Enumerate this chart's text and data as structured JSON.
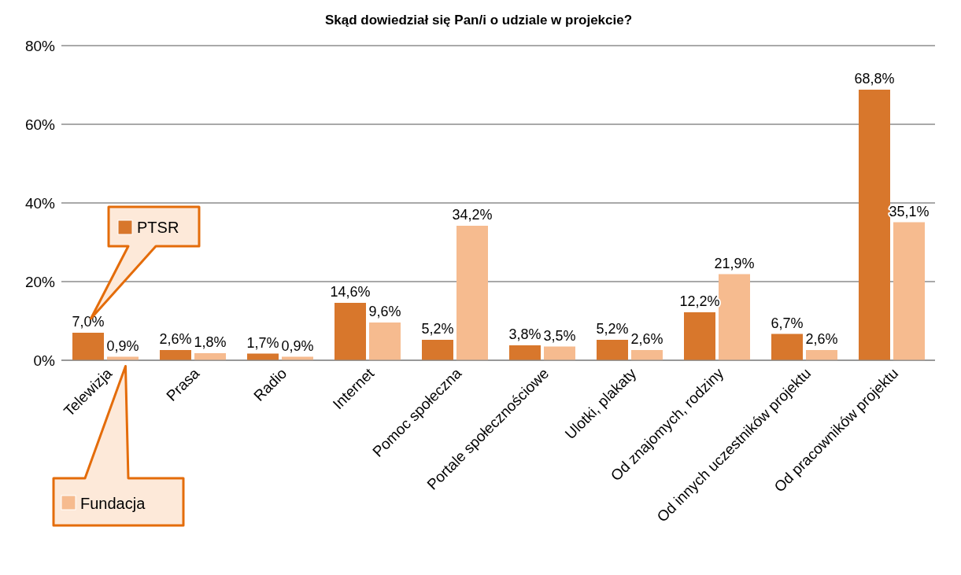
{
  "chart_data": {
    "type": "bar",
    "title": "Skąd dowiedział się Pan/i o udziale w projekcie?",
    "categories": [
      "Telewizja",
      "Prasa",
      "Radio",
      "Internet",
      "Pomoc społeczna",
      "Portale społecznościowe",
      "Ulotki, plakaty",
      "Od znajomych, rodziny",
      "Od innych uczestników projektu",
      "Od pracowników projektu"
    ],
    "series": [
      {
        "name": "PTSR",
        "color": "#d8772c",
        "values": [
          7.0,
          2.6,
          1.7,
          14.6,
          5.2,
          3.8,
          5.2,
          12.2,
          6.7,
          68.8
        ],
        "value_labels": [
          "7,0%",
          "2,6%",
          "1,7%",
          "14,6%",
          "5,2%",
          "3,8%",
          "5,2%",
          "12,2%",
          "6,7%",
          "68,8%"
        ]
      },
      {
        "name": "Fundacja",
        "color": "#f6bb8f",
        "values": [
          0.9,
          1.8,
          0.9,
          9.6,
          34.2,
          3.5,
          2.6,
          21.9,
          2.6,
          35.1
        ],
        "value_labels": [
          "0,9%",
          "1,8%",
          "0,9%",
          "9,6%",
          "34,2%",
          "3,5%",
          "2,6%",
          "21,9%",
          "2,6%",
          "35,1%"
        ]
      }
    ],
    "ylim": [
      0,
      80
    ],
    "yticks": [
      {
        "value": 0,
        "label": "0%"
      },
      {
        "value": 20,
        "label": "20%"
      },
      {
        "value": 40,
        "label": "40%"
      },
      {
        "value": 60,
        "label": "60%"
      },
      {
        "value": 80,
        "label": "80%"
      }
    ],
    "grid": "y",
    "legend": "left"
  }
}
